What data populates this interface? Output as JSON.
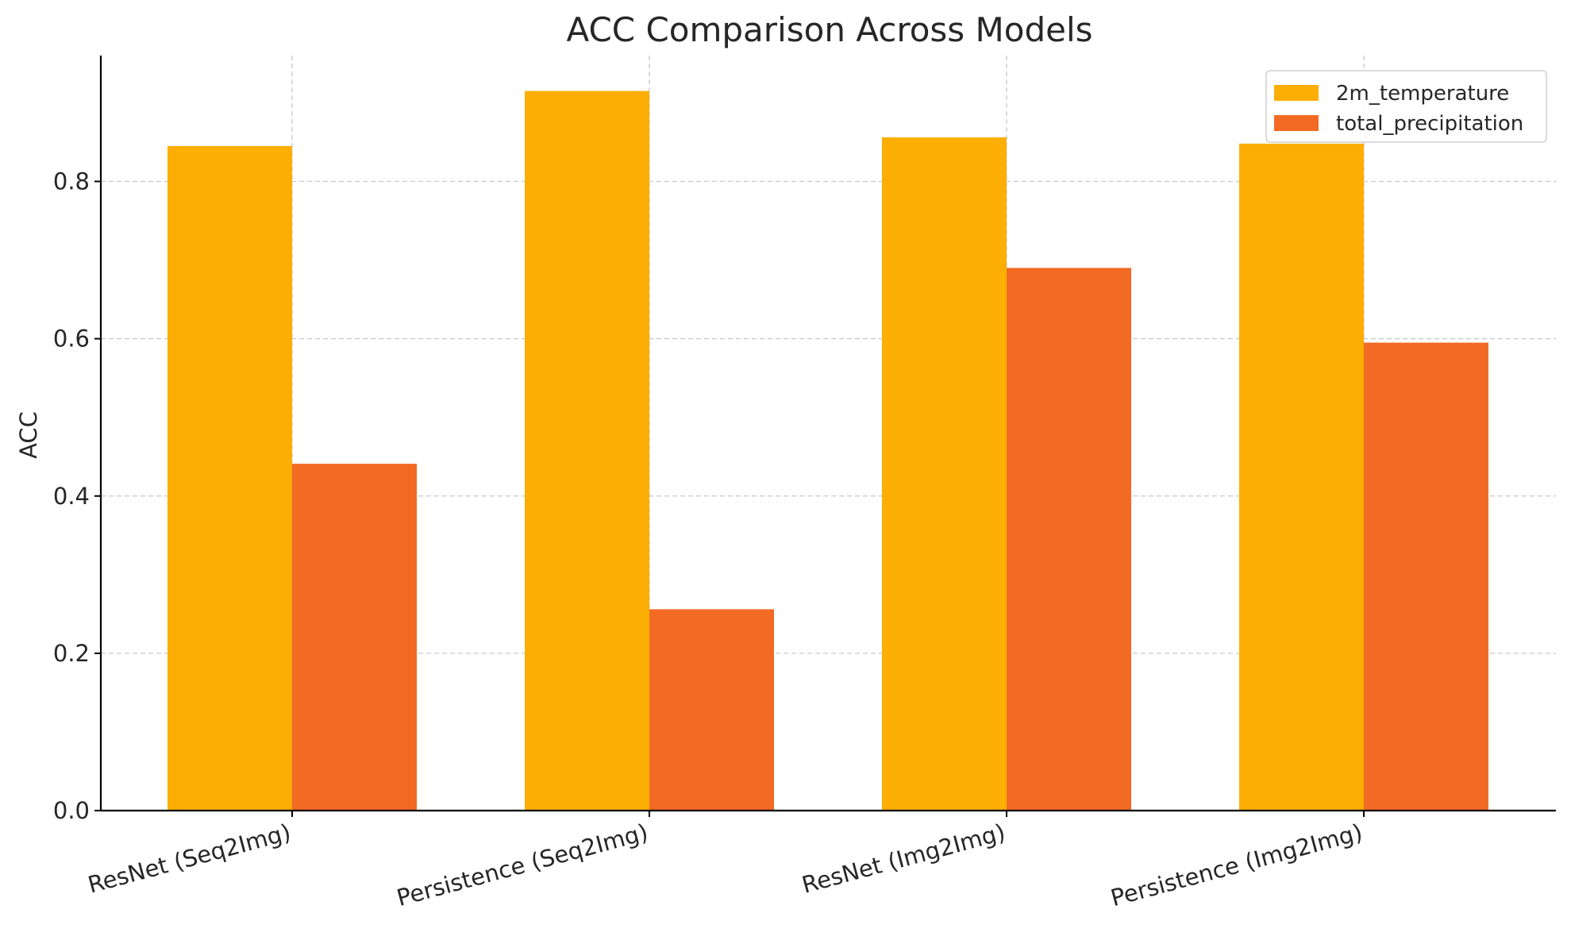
{
  "chart_data": {
    "type": "bar",
    "title": "ACC Comparison Across Models",
    "xlabel": "",
    "ylabel": "ACC",
    "categories": [
      "ResNet (Seq2Img)",
      "Persistence (Seq2Img)",
      "ResNet (Img2Img)",
      "Persistence (Img2Img)"
    ],
    "series": [
      {
        "name": "2m_temperature",
        "values": [
          0.845,
          0.915,
          0.856,
          0.848
        ],
        "color": "#fdae04"
      },
      {
        "name": "total_precipitation",
        "values": [
          0.441,
          0.256,
          0.69,
          0.595
        ],
        "color": "#f26a23"
      }
    ],
    "ylim": [
      0,
      0.96
    ],
    "yticks": [
      "0.0",
      "0.2",
      "0.4",
      "0.6",
      "0.8"
    ],
    "ytick_values": [
      0,
      0.2,
      0.4,
      0.6,
      0.8
    ],
    "grid": true,
    "legend_position": "top-right",
    "colors": {
      "grid": "#c8c8c8",
      "axis": "#000000",
      "text": "#262626",
      "legend_border": "#d0d0d0"
    }
  }
}
